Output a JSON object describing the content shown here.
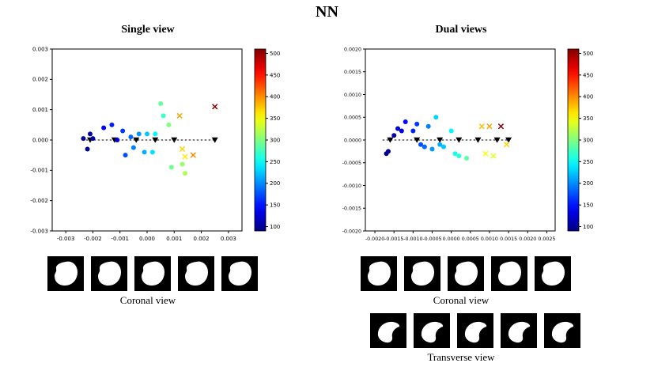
{
  "title": "NN",
  "panels": [
    {
      "title": "Single view",
      "thumb_rows": [
        {
          "view": "coronal",
          "count": 5,
          "caption": "Coronal view"
        }
      ]
    },
    {
      "title": "Dual views",
      "thumb_rows": [
        {
          "view": "coronal",
          "count": 5,
          "caption": "Coronal view"
        },
        {
          "view": "transverse",
          "count": 5,
          "caption": "Transverse view"
        }
      ]
    }
  ],
  "chart_data": [
    {
      "type": "scatter",
      "title": "Single view",
      "xlabel": "",
      "ylabel": "",
      "grid": false,
      "xlim": [
        -0.0035,
        0.0035
      ],
      "ylim": [
        -0.003,
        0.003
      ],
      "tick_fontsize": 7,
      "xticks": {
        "values": [
          -0.003,
          -0.002,
          -0.001,
          0.0,
          0.001,
          0.002,
          0.003
        ],
        "labels": [
          "-0.003",
          "-0.002",
          "-0.001",
          "0.000",
          "0.001",
          "0.002",
          "0.003"
        ]
      },
      "yticks": {
        "values": [
          -0.003,
          -0.002,
          -0.001,
          0.0,
          0.001,
          0.002,
          0.003
        ],
        "labels": [
          "-0.003",
          "-0.002",
          "-0.001",
          "0.000",
          "0.001",
          "0.002",
          "0.003"
        ]
      },
      "zero_line": [
        -0.0024,
        0.0025
      ],
      "triangles_x": [
        -0.0021,
        -0.0012,
        -0.0004,
        0.0003,
        0.001,
        0.0025
      ],
      "points": [
        [
          -0.00235,
          5e-05,
          100
        ],
        [
          -0.0022,
          -0.0003,
          95
        ],
        [
          -0.0021,
          0.0002,
          110
        ],
        [
          -0.002,
          5e-05,
          105
        ],
        [
          -0.0016,
          0.0004,
          140
        ],
        [
          -0.0013,
          0.0005,
          155
        ],
        [
          -0.0011,
          0.0,
          130
        ],
        [
          -0.0009,
          0.0003,
          165
        ],
        [
          -0.0008,
          -0.0005,
          175
        ],
        [
          -0.0006,
          0.0001,
          185
        ],
        [
          -0.0005,
          -0.00025,
          195
        ],
        [
          -0.0003,
          0.0002,
          205
        ],
        [
          -0.0001,
          -0.0004,
          215
        ],
        [
          0.0,
          0.0002,
          225
        ],
        [
          0.0002,
          -0.0004,
          235
        ],
        [
          0.0003,
          0.0002,
          245
        ],
        [
          0.0005,
          0.0012,
          290
        ],
        [
          0.0006,
          0.0008,
          270
        ],
        [
          0.0008,
          0.0005,
          300
        ],
        [
          0.0009,
          -0.0009,
          295
        ],
        [
          0.0013,
          -0.0008,
          310
        ],
        [
          0.0014,
          -0.0011,
          320
        ]
      ],
      "x_markers": [
        [
          0.0012,
          0.0008,
          390
        ],
        [
          0.0013,
          -0.0003,
          370
        ],
        [
          0.0014,
          -0.00055,
          360
        ],
        [
          0.0017,
          -0.0005,
          400
        ],
        [
          0.0025,
          0.0011,
          505
        ]
      ],
      "cnorm": [
        90,
        510
      ],
      "colorbar": {
        "min": 90,
        "max": 510,
        "ticks": [
          500,
          450,
          400,
          350,
          300,
          250,
          200,
          150,
          100
        ]
      }
    },
    {
      "type": "scatter",
      "title": "Dual views",
      "xlabel": "",
      "ylabel": "",
      "grid": false,
      "xlim": [
        -0.00225,
        0.00272
      ],
      "ylim": [
        -0.002,
        0.002
      ],
      "tick_fontsize": 6.3,
      "xticks": {
        "values": [
          -0.002,
          -0.0015,
          -0.001,
          -0.0005,
          0.0,
          0.0005,
          0.001,
          0.0015,
          0.002,
          0.0025
        ],
        "labels": [
          "-0.0020",
          "-0.0015",
          "-0.0010",
          "-0.0005",
          "0.0000",
          "0.0005",
          "0.0010",
          "0.0015",
          "0.0020",
          "0.0025"
        ]
      },
      "yticks": {
        "values": [
          -0.002,
          -0.0015,
          -0.001,
          -0.0005,
          0.0,
          0.0005,
          0.001,
          0.0015,
          0.002
        ],
        "labels": [
          "-0.0020",
          "-0.0015",
          "-0.0010",
          "-0.0005",
          "0.0000",
          "0.0005",
          "0.0010",
          "0.0015",
          "0.0020"
        ]
      },
      "zero_line": [
        -0.0018,
        0.0015
      ],
      "triangles_x": [
        -0.0016,
        -0.0009,
        -0.0003,
        0.0002,
        0.0007,
        0.0012,
        0.0015
      ],
      "points": [
        [
          -0.0017,
          -0.0003,
          95
        ],
        [
          -0.00165,
          -0.00025,
          100
        ],
        [
          -0.0015,
          0.0001,
          110
        ],
        [
          -0.0014,
          0.00025,
          120
        ],
        [
          -0.0013,
          0.0002,
          130
        ],
        [
          -0.0012,
          0.0004,
          145
        ],
        [
          -0.001,
          0.0002,
          155
        ],
        [
          -0.0009,
          0.00035,
          165
        ],
        [
          -0.0008,
          -0.0001,
          175
        ],
        [
          -0.0007,
          -0.00015,
          185
        ],
        [
          -0.0006,
          0.0003,
          195
        ],
        [
          -0.0005,
          -0.0002,
          205
        ],
        [
          -0.0004,
          0.0005,
          230
        ],
        [
          -0.0003,
          -0.0001,
          215
        ],
        [
          -0.0002,
          -0.00015,
          225
        ],
        [
          0.0,
          0.0002,
          245
        ],
        [
          0.0001,
          -0.0003,
          255
        ],
        [
          0.0002,
          -0.00035,
          265
        ],
        [
          0.0004,
          -0.0004,
          285
        ]
      ],
      "x_markers": [
        [
          0.0008,
          0.0003,
          380
        ],
        [
          0.0009,
          -0.0003,
          350
        ],
        [
          0.001,
          0.0003,
          390
        ],
        [
          0.0011,
          -0.00035,
          340
        ],
        [
          0.0013,
          0.0003,
          505
        ],
        [
          0.00145,
          -0.0001,
          370
        ]
      ],
      "cnorm": [
        90,
        510
      ],
      "colorbar": {
        "min": 90,
        "max": 510,
        "ticks": [
          500,
          450,
          400,
          350,
          300,
          250,
          200,
          150,
          100
        ]
      }
    }
  ]
}
